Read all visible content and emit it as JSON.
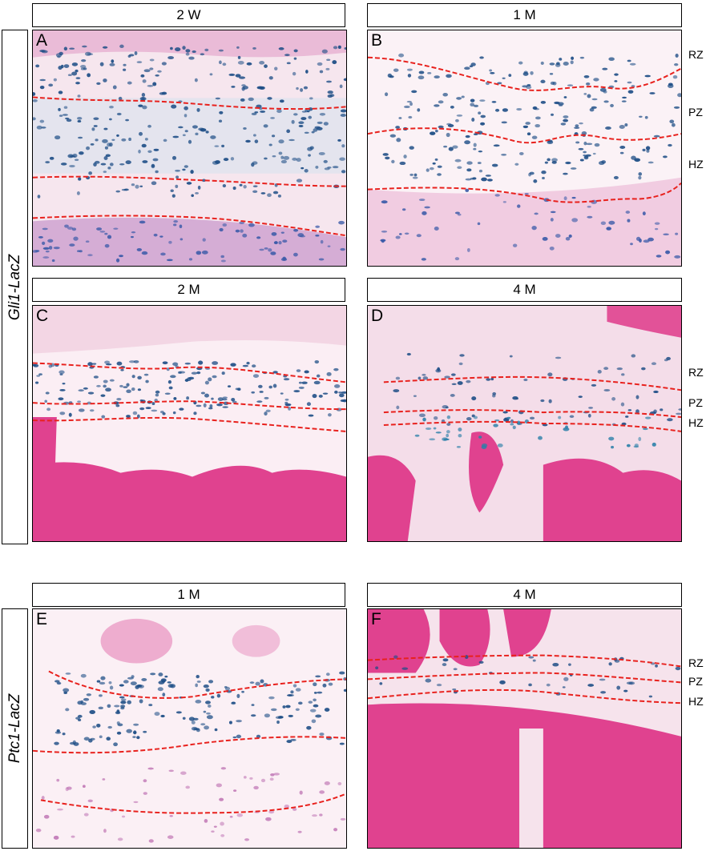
{
  "groups": [
    {
      "genotype": "Gli1-LacZ"
    },
    {
      "genotype": "Ptc1-LacZ"
    }
  ],
  "panels": [
    {
      "letter": "A",
      "timepoint": "2 W"
    },
    {
      "letter": "B",
      "timepoint": "1 M",
      "zones": [
        "RZ",
        "PZ",
        "HZ"
      ]
    },
    {
      "letter": "C",
      "timepoint": "2 M"
    },
    {
      "letter": "D",
      "timepoint": "4 M",
      "zones": [
        "RZ",
        "PZ",
        "HZ"
      ]
    },
    {
      "letter": "E",
      "timepoint": "1 M"
    },
    {
      "letter": "F",
      "timepoint": "4 M",
      "zones": [
        "RZ",
        "PZ",
        "HZ"
      ]
    }
  ],
  "colors": {
    "boundary_line": "#e8211d",
    "lacz_stain": "#1e4e86",
    "eosin_background": "#f6e6ee",
    "marrow": "#e0428f"
  }
}
